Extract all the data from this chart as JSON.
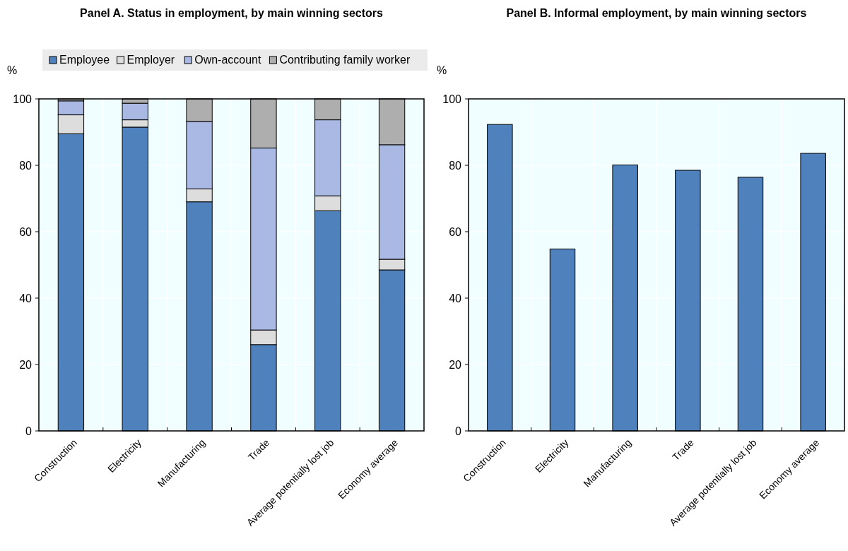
{
  "chart_data": [
    {
      "type": "bar",
      "title": "Panel A. Status in employment, by main winning sectors",
      "ylabel": "%",
      "categories": [
        "Construction",
        "Electricity",
        "Manufacturing",
        "Trade",
        "Average potentially lost job",
        "Economy average"
      ],
      "stacked": true,
      "series": [
        {
          "name": "Employee",
          "color": "#4f81bd",
          "values": [
            89.5,
            91.5,
            69.0,
            26.0,
            66.3,
            48.5
          ]
        },
        {
          "name": "Employer",
          "color": "#dddddd",
          "values": [
            5.7,
            2.2,
            3.9,
            4.4,
            4.5,
            3.2
          ]
        },
        {
          "name": "Own-account",
          "color": "#a9b9e3",
          "values": [
            4.2,
            5.0,
            20.3,
            54.8,
            22.9,
            34.5
          ]
        },
        {
          "name": "Contributing family worker",
          "color": "#aeaeae",
          "values": [
            0.6,
            1.3,
            6.8,
            14.8,
            6.3,
            13.8
          ]
        }
      ],
      "ylim": [
        0,
        100
      ],
      "yticks": [
        0,
        20,
        40,
        60,
        80,
        100
      ],
      "grid": true,
      "legend": "top"
    },
    {
      "type": "bar",
      "title": "Panel B. Informal employment, by main winning sectors",
      "ylabel": "%",
      "categories": [
        "Construction",
        "Electricity",
        "Manufacturing",
        "Trade",
        "Average potentially lost job",
        "Economy average"
      ],
      "series": [
        {
          "color": "#4f81bd",
          "values": [
            92.3,
            54.8,
            80.1,
            78.5,
            76.4,
            83.6
          ]
        }
      ],
      "ylim": [
        0,
        100
      ],
      "yticks": [
        0,
        20,
        40,
        60,
        80,
        100
      ],
      "grid": true
    }
  ]
}
